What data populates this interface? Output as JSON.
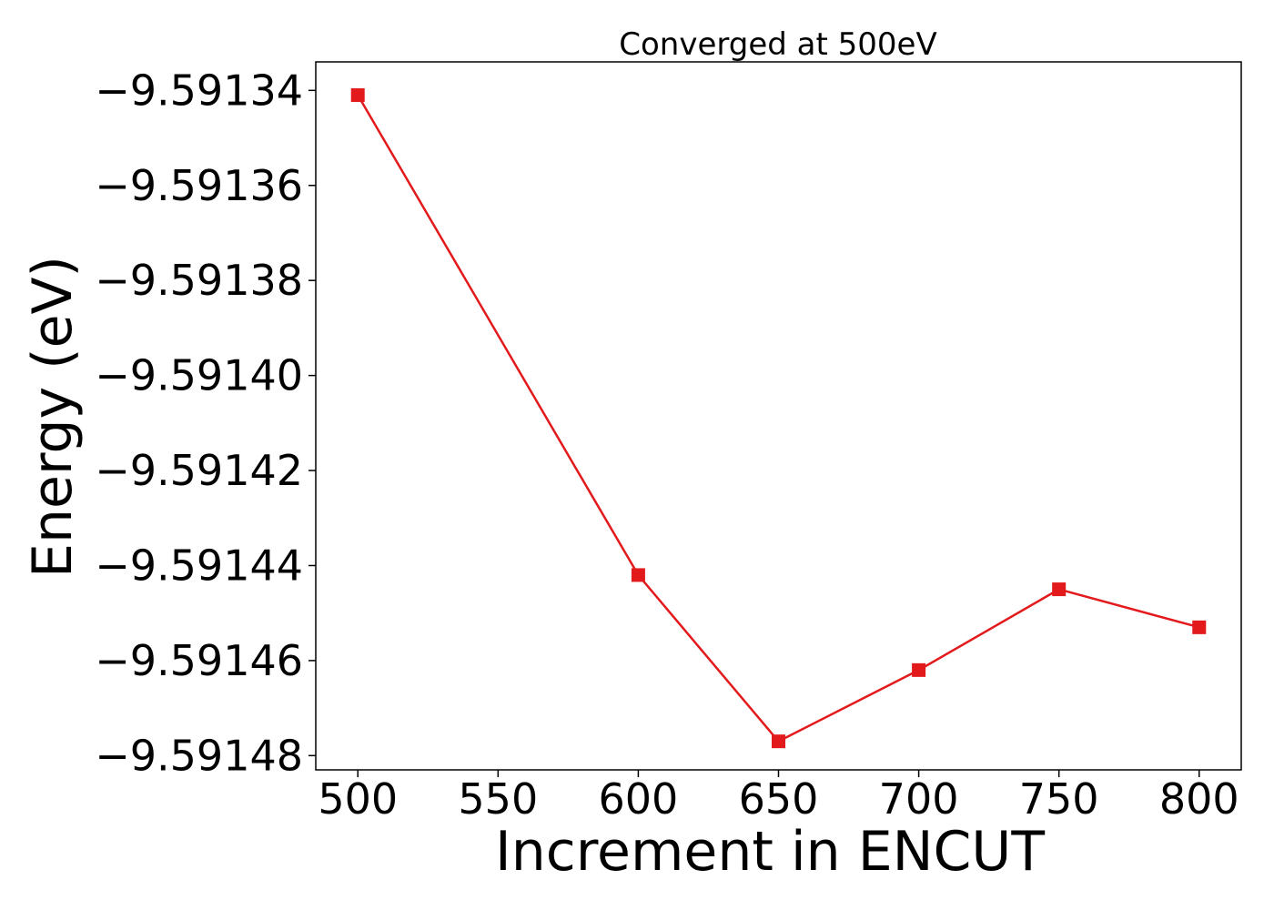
{
  "chart_data": {
    "type": "line",
    "title": "Converged at 500eV",
    "xlabel": "Increment in ENCUT",
    "ylabel": "Energy (eV)",
    "x": [
      500,
      600,
      650,
      700,
      750,
      800
    ],
    "series": [
      {
        "values": [
          -9.591341,
          -9.591442,
          -9.591477,
          -9.591462,
          -9.591445,
          -9.591453
        ],
        "color": "#e31a1c",
        "marker": "square"
      }
    ],
    "xlim": [
      485,
      815
    ],
    "ylim": [
      -9.591483,
      -9.591334
    ],
    "xticks": [
      500,
      550,
      600,
      650,
      700,
      750,
      800
    ],
    "yticks": [
      -9.59134,
      -9.59136,
      -9.59138,
      -9.5914,
      -9.59142,
      -9.59144,
      -9.59146,
      -9.59148
    ],
    "ytick_labels": [
      "−9.59134",
      "−9.59136",
      "−9.59138",
      "−9.59140",
      "−9.59142",
      "−9.59144",
      "−9.59146",
      "−9.59148"
    ],
    "grid": false,
    "legend": false
  }
}
